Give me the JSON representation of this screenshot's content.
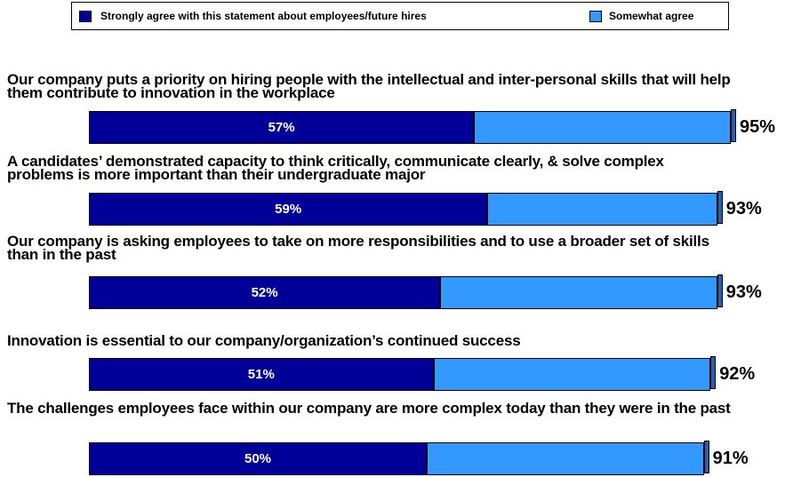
{
  "chart_data": {
    "type": "stacked-bar-horizontal",
    "categories": [
      "Our company puts a priority on hiring people with the intellectual and inter-personal skills that will help them contribute to innovation in the workplace",
      "A candidates’ demonstrated capacity to think critically, communicate clearly, & solve complex problems is more important than their undergraduate major",
      "Our company is asking employees to take on more responsibilities and to use a broader set of skills than in the past",
      "Innovation is essential to our company/organization’s continued success",
      "The challenges employees face within our company are more complex today than they were in the past"
    ],
    "series": [
      {
        "name": "Strongly agree with this statement about employees/future hires",
        "color": "#000099",
        "values": [
          57,
          59,
          52,
          51,
          50
        ],
        "value_labels": [
          "57%",
          "59%",
          "52%",
          "51%",
          "50%"
        ]
      },
      {
        "name": "Somewhat agree",
        "color": "#3399ff",
        "values": [
          38,
          34,
          41,
          41,
          41
        ]
      }
    ],
    "totals": [
      95,
      93,
      93,
      92,
      91
    ],
    "total_labels": [
      "95%",
      "93%",
      "93%",
      "92%",
      "91%"
    ]
  }
}
